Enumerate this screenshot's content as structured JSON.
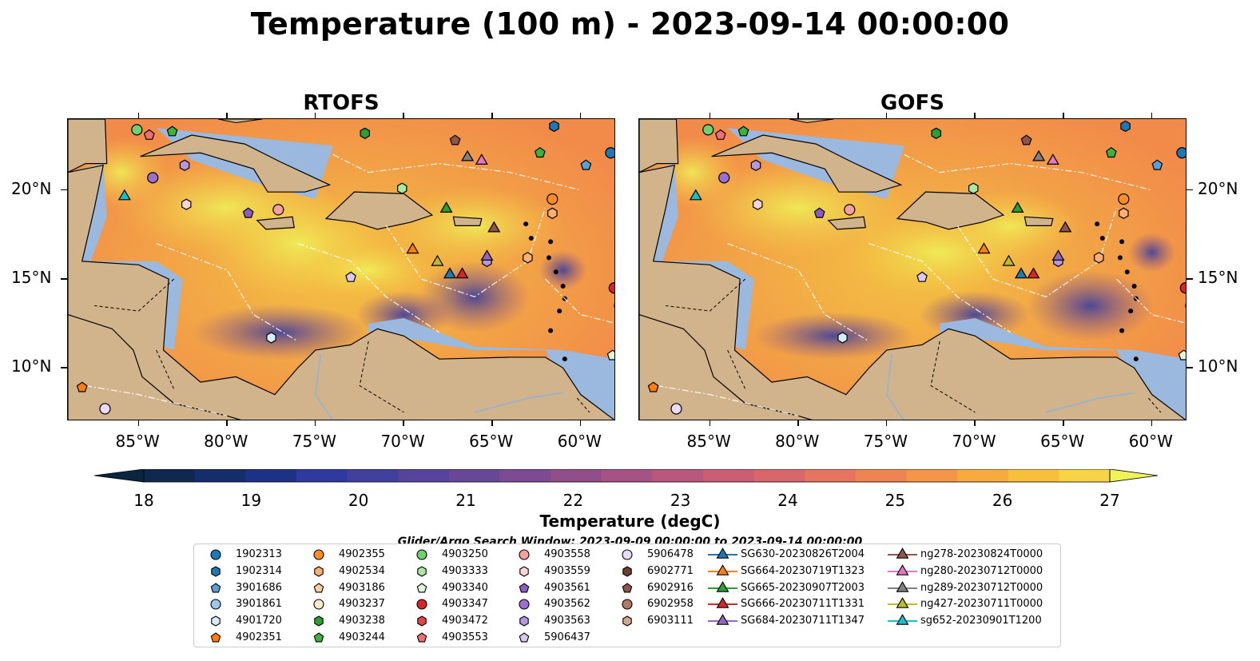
{
  "title": "Temperature (100 m) - 2023-09-14 00:00:00",
  "panels": [
    {
      "title": "RTOFS"
    },
    {
      "title": "GOFS"
    }
  ],
  "lon_labels": [
    "85°W",
    "80°W",
    "75°W",
    "70°W",
    "65°W",
    "60°W"
  ],
  "lat_labels": [
    "20°N",
    "15°N",
    "10°N"
  ],
  "colorbar": {
    "label": "Temperature (degC)",
    "ticks": [
      "18",
      "19",
      "20",
      "21",
      "22",
      "23",
      "24",
      "25",
      "26",
      "27"
    ],
    "colors": [
      "#0b2540",
      "#10284f",
      "#152e6a",
      "#1d3186",
      "#2e3a9f",
      "#41409f",
      "#55449c",
      "#684698",
      "#7c4b92",
      "#904f8b",
      "#a55385",
      "#b9587c",
      "#cb5e73",
      "#d8676b",
      "#e67460",
      "#ef8452",
      "#f49646",
      "#f8aa3e",
      "#f9be3c",
      "#f6d445",
      "#eff359"
    ],
    "extend": "both"
  },
  "search_window": "Glider/Argo Search Window: 2023-09-09 00:00:00 to 2023-09-14 00:00:00",
  "legend": {
    "columns": [
      [
        {
          "label": "1902313",
          "marker": "circle",
          "color": "#1f77b4"
        },
        {
          "label": "1902314",
          "marker": "hexagon",
          "color": "#1f77b4"
        },
        {
          "label": "3901686",
          "marker": "pentagon",
          "color": "#5a9fd4"
        },
        {
          "label": "3901861",
          "marker": "circle",
          "color": "#9ec6ea"
        },
        {
          "label": "4901720",
          "marker": "hexagon",
          "color": "#d6ecfa"
        },
        {
          "label": "4902351",
          "marker": "pentagon",
          "color": "#ff7f0e"
        }
      ],
      [
        {
          "label": "4902355",
          "marker": "circle",
          "color": "#ff8c2a"
        },
        {
          "label": "4902534",
          "marker": "hexagon",
          "color": "#ffb070"
        },
        {
          "label": "4903186",
          "marker": "pentagon",
          "color": "#ffcfa0"
        },
        {
          "label": "4903237",
          "marker": "circle",
          "color": "#ffe8cc"
        },
        {
          "label": "4903238",
          "marker": "hexagon",
          "color": "#2ca02c"
        },
        {
          "label": "4903244",
          "marker": "pentagon",
          "color": "#3cb43c"
        }
      ],
      [
        {
          "label": "4903250",
          "marker": "circle",
          "color": "#6fd06f"
        },
        {
          "label": "4903333",
          "marker": "hexagon",
          "color": "#a8e8a0"
        },
        {
          "label": "4903340",
          "marker": "pentagon",
          "color": "#dff7d8"
        },
        {
          "label": "4903347",
          "marker": "circle",
          "color": "#d62728"
        },
        {
          "label": "4903472",
          "marker": "hexagon",
          "color": "#e04444"
        },
        {
          "label": "4903553",
          "marker": "pentagon",
          "color": "#f07070"
        }
      ],
      [
        {
          "label": "4903558",
          "marker": "circle",
          "color": "#f6a0a0"
        },
        {
          "label": "4903559",
          "marker": "hexagon",
          "color": "#fcd6d6"
        },
        {
          "label": "4903561",
          "marker": "pentagon",
          "color": "#8a5cc4"
        },
        {
          "label": "4903562",
          "marker": "circle",
          "color": "#9b6fd0"
        },
        {
          "label": "4903563",
          "marker": "hexagon",
          "color": "#b895e0"
        },
        {
          "label": "5906437",
          "marker": "pentagon",
          "color": "#dcc6f2"
        }
      ],
      [
        {
          "label": "5906478",
          "marker": "circle",
          "color": "#eadcf8"
        },
        {
          "label": "6902771",
          "marker": "hexagon",
          "color": "#6b3e2e"
        },
        {
          "label": "6902916",
          "marker": "pentagon",
          "color": "#8c564b"
        },
        {
          "label": "6902958",
          "marker": "circle",
          "color": "#b07a68"
        },
        {
          "label": "6903111",
          "marker": "hexagon",
          "color": "#d0a890"
        }
      ],
      [
        {
          "label": "SG630-20230826T2004",
          "marker": "triangle",
          "color": "#1f77b4"
        },
        {
          "label": "SG664-20230719T1323",
          "marker": "triangle",
          "color": "#ff7f0e"
        },
        {
          "label": "SG665-20230907T2003",
          "marker": "triangle",
          "color": "#2ca02c"
        },
        {
          "label": "SG666-20230711T1331",
          "marker": "triangle",
          "color": "#d62728"
        },
        {
          "label": "SG684-20230711T1347",
          "marker": "triangle",
          "color": "#9467bd"
        }
      ],
      [
        {
          "label": "ng278-20230824T0000",
          "marker": "triangle",
          "color": "#8c564b"
        },
        {
          "label": "ng280-20230712T0000",
          "marker": "triangle",
          "color": "#e377c2"
        },
        {
          "label": "ng289-20230712T0000",
          "marker": "triangle",
          "color": "#7f7f7f"
        },
        {
          "label": "ng427-20230711T0000",
          "marker": "triangle",
          "color": "#bcbd22"
        },
        {
          "label": "sg652-20230901T1200",
          "marker": "triangle",
          "color": "#17becf"
        }
      ]
    ]
  },
  "chart_data": {
    "type": "map",
    "lon_range": [
      -89,
      -58
    ],
    "lat_range": [
      7,
      24
    ],
    "floats": [
      {
        "id": "1902313",
        "lon": -58.3,
        "lat": 22.1
      },
      {
        "id": "1902314",
        "lon": -61.5,
        "lat": 23.6
      },
      {
        "id": "3901686",
        "lon": -59.7,
        "lat": 21.4
      },
      {
        "id": "4903250",
        "lon": -85.1,
        "lat": 23.4
      },
      {
        "id": "4903238",
        "lon": -72.2,
        "lat": 23.2
      },
      {
        "id": "6902916",
        "lon": -67.1,
        "lat": 22.8
      },
      {
        "id": "4903244",
        "lon": -83.1,
        "lat": 23.3
      },
      {
        "id": "4903553",
        "lon": -84.4,
        "lat": 23.1
      },
      {
        "id": "4903244b",
        "lon": -62.3,
        "lat": 22.1
      },
      {
        "id": "4903562",
        "lon": -84.2,
        "lat": 20.7
      },
      {
        "id": "4903563",
        "lon": -82.4,
        "lat": 21.4
      },
      {
        "id": "4903559",
        "lon": -82.3,
        "lat": 19.2
      },
      {
        "id": "4903561",
        "lon": -78.8,
        "lat": 18.7
      },
      {
        "id": "4903558",
        "lon": -77.1,
        "lat": 18.9
      },
      {
        "id": "4903333",
        "lon": -70.1,
        "lat": 20.1
      },
      {
        "id": "4902355",
        "lon": -61.6,
        "lat": 19.5
      },
      {
        "id": "4902534",
        "lon": -61.6,
        "lat": 18.7
      },
      {
        "id": "4902534b",
        "lon": -63.0,
        "lat": 16.2
      },
      {
        "id": "5906437",
        "lon": -73.0,
        "lat": 15.1
      },
      {
        "id": "4901720",
        "lon": -77.5,
        "lat": 11.7
      },
      {
        "id": "4903347",
        "lon": -58.1,
        "lat": 14.5
      },
      {
        "id": "6902958",
        "lon": -57.8,
        "lat": 13.5
      },
      {
        "id": "4903340",
        "lon": -58.2,
        "lat": 10.7
      },
      {
        "id": "4902351",
        "lon": -88.2,
        "lat": 8.9
      },
      {
        "id": "5906478",
        "lon": -86.9,
        "lat": 7.7
      },
      {
        "id": "4903563b",
        "lon": -65.3,
        "lat": 16.0
      }
    ],
    "gliders": [
      {
        "id": "sg652-20230901T1200",
        "lon": -85.8,
        "lat": 19.7
      },
      {
        "id": "SG665-20230907T2003",
        "lon": -67.6,
        "lat": 19.0
      },
      {
        "id": "ng289-20230712T0000",
        "lon": -66.4,
        "lat": 21.9
      },
      {
        "id": "ng280-20230712T0000",
        "lon": -65.6,
        "lat": 21.7
      },
      {
        "id": "ng278-20230824T0000",
        "lon": -64.9,
        "lat": 17.9
      },
      {
        "id": "SG664-20230719T1323",
        "lon": -69.5,
        "lat": 16.7
      },
      {
        "id": "ng427-20230711T0000",
        "lon": -68.1,
        "lat": 16.0
      },
      {
        "id": "SG630-20230826T2004",
        "lon": -67.4,
        "lat": 15.3
      },
      {
        "id": "SG666-20230711T1331",
        "lon": -66.7,
        "lat": 15.3
      },
      {
        "id": "SG684-20230711T1347",
        "lon": -65.3,
        "lat": 16.3
      }
    ]
  }
}
